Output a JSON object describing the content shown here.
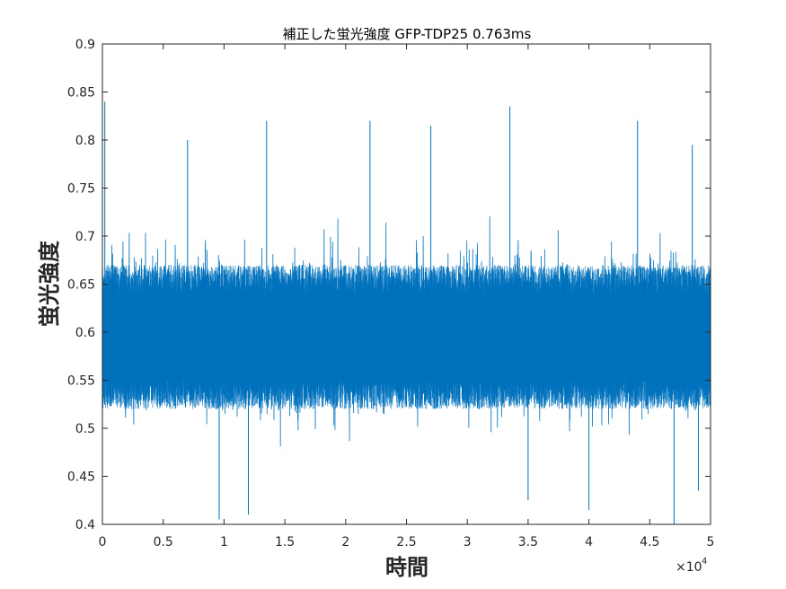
{
  "chart_data": {
    "type": "line",
    "title": "補正した蛍光強度 GFP-TDP25 0.763ms",
    "xlabel": "時間",
    "ylabel": "蛍光強度",
    "xlim": [
      0,
      50000
    ],
    "ylim": [
      0.4,
      0.9
    ],
    "x_ticks": [
      0,
      5000,
      10000,
      15000,
      20000,
      25000,
      30000,
      35000,
      40000,
      45000,
      50000
    ],
    "x_tick_labels": [
      "0",
      "0.5",
      "1",
      "1.5",
      "2",
      "2.5",
      "3",
      "3.5",
      "4",
      "4.5",
      "5"
    ],
    "x_exponent_label": "×10",
    "x_exponent": "4",
    "y_ticks": [
      0.4,
      0.45,
      0.5,
      0.55,
      0.6,
      0.65,
      0.7,
      0.75,
      0.8,
      0.85,
      0.9
    ],
    "y_tick_labels": [
      "0.4",
      "0.45",
      "0.5",
      "0.55",
      "0.6",
      "0.65",
      "0.7",
      "0.75",
      "0.8",
      "0.85",
      "0.9"
    ],
    "grid": false,
    "series": [
      {
        "color": "#0072BD",
        "n_points": 50000,
        "x_start": 0,
        "x_end": 50000,
        "mean": 0.6,
        "core_min": 0.52,
        "core_max": 0.67,
        "min": 0.4,
        "max": 0.87,
        "peaks": [
          {
            "x": 0,
            "y": 0.87
          },
          {
            "x": 200,
            "y": 0.84
          },
          {
            "x": 7000,
            "y": 0.8
          },
          {
            "x": 13500,
            "y": 0.82
          },
          {
            "x": 22000,
            "y": 0.82
          },
          {
            "x": 27000,
            "y": 0.815
          },
          {
            "x": 33500,
            "y": 0.835
          },
          {
            "x": 44000,
            "y": 0.82
          },
          {
            "x": 48500,
            "y": 0.795
          }
        ],
        "troughs": [
          {
            "x": 9600,
            "y": 0.405
          },
          {
            "x": 12000,
            "y": 0.41
          },
          {
            "x": 35000,
            "y": 0.425
          },
          {
            "x": 40000,
            "y": 0.415
          },
          {
            "x": 47000,
            "y": 0.4
          },
          {
            "x": 49000,
            "y": 0.435
          }
        ]
      }
    ]
  }
}
